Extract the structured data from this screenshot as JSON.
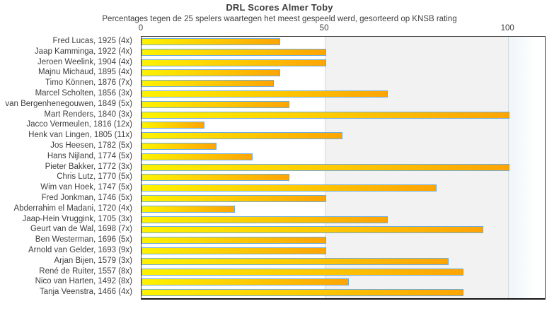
{
  "chart_data": {
    "type": "bar",
    "orientation": "horizontal",
    "title": "DRL Scores Almer Toby",
    "subtitle": "Percentages tegen de 25 spelers waartegen het meest gespeeld werd, gesorteerd op KNSB rating",
    "xlabel": "",
    "ylabel": "",
    "xlim": [
      0,
      110
    ],
    "xticks": [
      0,
      50,
      100
    ],
    "grid": "vertical lines at 50 and 100, grey band between 50 and 100",
    "legend": "none",
    "categories": [
      "Fred Lucas, 1925 (4x)",
      "Jaap Kamminga, 1922 (4x)",
      "Jeroen Weelink, 1904 (4x)",
      "Majnu Michaud, 1895 (4x)",
      "Timo Können, 1876 (7x)",
      "Marcel Scholten, 1856 (3x)",
      "van Bergenhenegouwen, 1849 (5x)",
      "Mart Renders, 1840 (3x)",
      "Jacco Vermeulen, 1816 (12x)",
      "Henk van Lingen, 1805 (11x)",
      "Jos Heesen, 1782 (5x)",
      "Hans Nijland, 1774 (5x)",
      "Pieter Bakker, 1772 (3x)",
      "Chris Lutz, 1770 (5x)",
      "Wim van Hoek, 1747 (5x)",
      "Fred Jonkman, 1746 (5x)",
      "Abderrahim el Madani, 1720 (4x)",
      "Jaap-Hein Vruggink, 1705 (3x)",
      "Geurt van de Wal, 1698 (7x)",
      "Ben Westerman, 1696 (5x)",
      "Arnold van Gelder, 1693 (9x)",
      "Arjan Bijen, 1579 (3x)",
      "René de Ruiter, 1557 (8x)",
      "Nico van Harten, 1492 (8x)",
      "Tanja Veenstra, 1466 (4x)"
    ],
    "values": [
      37.5,
      50,
      50,
      37.5,
      35.7,
      66.7,
      40,
      100,
      16.7,
      54.5,
      20,
      30,
      100,
      40,
      80,
      50,
      25,
      66.7,
      92.9,
      50,
      50,
      83.3,
      87.5,
      56.25,
      87.5
    ],
    "colors": {
      "bar_gradient_start": "#fef200",
      "bar_gradient_end": "#fda405",
      "bar_border": "#6fadde",
      "band_grey": "#f2f2f2",
      "text": "#3f3f3f",
      "plot_border": "#3c3c3c"
    }
  }
}
